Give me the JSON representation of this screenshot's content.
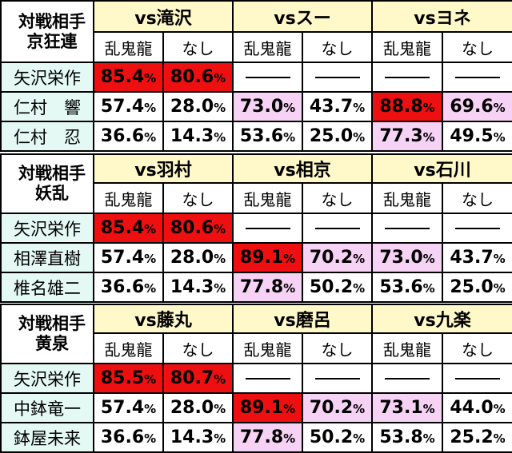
{
  "blocks": [
    {
      "label1": "対戦相手",
      "label2": "京狂連",
      "vs": [
        "vs滝沢",
        "vsスー",
        "vsヨネ"
      ],
      "sub": [
        "乱鬼龍",
        "なし",
        "乱鬼龍",
        "なし",
        "乱鬼龍",
        "なし"
      ],
      "rows": [
        {
          "name": "矢沢栄作",
          "cells": [
            {
              "v": "85.4",
              "u": "%",
              "hl": "red"
            },
            {
              "v": "80.6",
              "u": "%",
              "hl": "red"
            },
            {
              "v": "——",
              "u": "",
              "hl": "dash"
            },
            {
              "v": "——",
              "u": "",
              "hl": "dash"
            },
            {
              "v": "——",
              "u": "",
              "hl": "dash"
            },
            {
              "v": "——",
              "u": "",
              "hl": "dash"
            }
          ]
        },
        {
          "name": "仁村　響",
          "cells": [
            {
              "v": "57.4",
              "u": "%",
              "hl": ""
            },
            {
              "v": "28.0",
              "u": "%",
              "hl": ""
            },
            {
              "v": "73.0",
              "u": "%",
              "hl": "pink"
            },
            {
              "v": "43.7",
              "u": "%",
              "hl": ""
            },
            {
              "v": "88.8",
              "u": "%",
              "hl": "red"
            },
            {
              "v": "69.6",
              "u": "%",
              "hl": "pink"
            }
          ]
        },
        {
          "name": "仁村　忍",
          "cells": [
            {
              "v": "36.6",
              "u": "%",
              "hl": ""
            },
            {
              "v": "14.3",
              "u": "%",
              "hl": ""
            },
            {
              "v": "53.6",
              "u": "%",
              "hl": ""
            },
            {
              "v": "25.0",
              "u": "%",
              "hl": ""
            },
            {
              "v": "77.3",
              "u": "%",
              "hl": "pink"
            },
            {
              "v": "49.5",
              "u": "%",
              "hl": ""
            }
          ]
        }
      ]
    },
    {
      "label1": "対戦相手",
      "label2": "妖乱",
      "vs": [
        "vs羽村",
        "vs相京",
        "vs石川"
      ],
      "sub": [
        "乱鬼龍",
        "なし",
        "乱鬼龍",
        "なし",
        "乱鬼龍",
        "なし"
      ],
      "rows": [
        {
          "name": "矢沢栄作",
          "cells": [
            {
              "v": "85.4",
              "u": "%",
              "hl": "red"
            },
            {
              "v": "80.6",
              "u": "%",
              "hl": "red"
            },
            {
              "v": "——",
              "u": "",
              "hl": "dash"
            },
            {
              "v": "——",
              "u": "",
              "hl": "dash"
            },
            {
              "v": "——",
              "u": "",
              "hl": "dash"
            },
            {
              "v": "——",
              "u": "",
              "hl": "dash"
            }
          ]
        },
        {
          "name": "相澤直樹",
          "cells": [
            {
              "v": "57.4",
              "u": "%",
              "hl": ""
            },
            {
              "v": "28.0",
              "u": "%",
              "hl": ""
            },
            {
              "v": "89.1",
              "u": "%",
              "hl": "red"
            },
            {
              "v": "70.2",
              "u": "%",
              "hl": "pink"
            },
            {
              "v": "73.0",
              "u": "%",
              "hl": "pink"
            },
            {
              "v": "43.7",
              "u": "%",
              "hl": ""
            }
          ]
        },
        {
          "name": "椎名雄二",
          "cells": [
            {
              "v": "36.6",
              "u": "%",
              "hl": ""
            },
            {
              "v": "14.3",
              "u": "%",
              "hl": ""
            },
            {
              "v": "77.8",
              "u": "%",
              "hl": "pink"
            },
            {
              "v": "50.2",
              "u": "%",
              "hl": ""
            },
            {
              "v": "53.6",
              "u": "%",
              "hl": ""
            },
            {
              "v": "25.0",
              "u": "%",
              "hl": ""
            }
          ]
        }
      ]
    },
    {
      "label1": "対戦相手",
      "label2": "黄泉",
      "vs": [
        "vs藤丸",
        "vs磨呂",
        "vs九楽"
      ],
      "sub": [
        "乱鬼龍",
        "なし",
        "乱鬼龍",
        "なし",
        "乱鬼龍",
        "なし"
      ],
      "rows": [
        {
          "name": "矢沢栄作",
          "cells": [
            {
              "v": "85.5",
              "u": "%",
              "hl": "red"
            },
            {
              "v": "80.7",
              "u": "%",
              "hl": "red"
            },
            {
              "v": "——",
              "u": "",
              "hl": "dash"
            },
            {
              "v": "——",
              "u": "",
              "hl": "dash"
            },
            {
              "v": "——",
              "u": "",
              "hl": "dash"
            },
            {
              "v": "——",
              "u": "",
              "hl": "dash"
            }
          ]
        },
        {
          "name": "中鉢竜一",
          "cells": [
            {
              "v": "57.4",
              "u": "%",
              "hl": ""
            },
            {
              "v": "28.0",
              "u": "%",
              "hl": ""
            },
            {
              "v": "89.1",
              "u": "%",
              "hl": "red"
            },
            {
              "v": "70.2",
              "u": "%",
              "hl": "pink"
            },
            {
              "v": "73.1",
              "u": "%",
              "hl": "pink"
            },
            {
              "v": "44.0",
              "u": "%",
              "hl": ""
            }
          ]
        },
        {
          "name": "鉢屋未来",
          "cells": [
            {
              "v": "36.6",
              "u": "%",
              "hl": ""
            },
            {
              "v": "14.3",
              "u": "%",
              "hl": ""
            },
            {
              "v": "77.8",
              "u": "%",
              "hl": "pink"
            },
            {
              "v": "50.2",
              "u": "%",
              "hl": ""
            },
            {
              "v": "53.8",
              "u": "%",
              "hl": ""
            },
            {
              "v": "25.2",
              "u": "%",
              "hl": ""
            }
          ]
        }
      ]
    }
  ],
  "colors": {
    "header_bg": "#fff8c8",
    "name_bg": "#e4f8f4",
    "highlight_pink": "#f6d2f4",
    "highlight_red": "#ee1010"
  }
}
